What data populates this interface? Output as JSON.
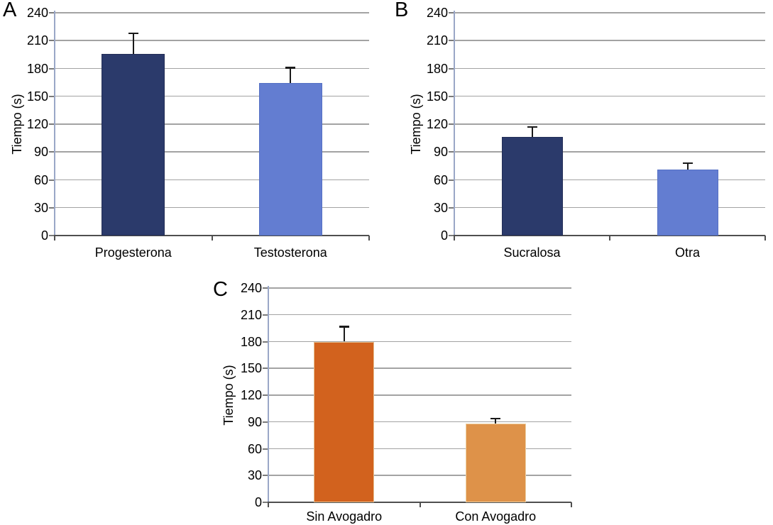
{
  "figure": {
    "background": "#ffffff",
    "description_visible_text_only": true
  },
  "colors": {
    "background": "#ffffff",
    "gridline": "#a3a3a3",
    "baseline": "#4f4f4f",
    "y_axis_line": "#9aa7c7",
    "tick_mark": "#7a7a7a",
    "x_tick_mark": "#4f4f4f",
    "error_bar": "#1a1a1a",
    "text": "#000000",
    "navy_bar": "#2b3a6b",
    "light_blue_bar": "#637dd1",
    "dark_orange_bar": "#d2621e",
    "light_orange_bar": "#de9249"
  },
  "chart_data": [
    {
      "type": "bar",
      "panel_label": "A",
      "title": "",
      "xlabel": "",
      "ylabel": "Tiempo (s)",
      "ylim": [
        0,
        240
      ],
      "ytick_step": 30,
      "yticks": [
        0,
        30,
        60,
        90,
        120,
        150,
        180,
        210,
        240
      ],
      "categories": [
        "Progesterona",
        "Testosterona"
      ],
      "values": [
        196,
        164
      ],
      "errors_top": [
        218,
        181
      ],
      "bar_colors": [
        "#2b3a6b",
        "#637dd1"
      ],
      "bar_border_colors": [
        "#232e57",
        "#5570c4"
      ],
      "grid": true,
      "legend_position": "none"
    },
    {
      "type": "bar",
      "panel_label": "B",
      "title": "",
      "xlabel": "",
      "ylabel": "Tiempo (s)",
      "ylim": [
        0,
        240
      ],
      "ytick_step": 30,
      "yticks": [
        0,
        30,
        60,
        90,
        120,
        150,
        180,
        210,
        240
      ],
      "categories": [
        "Sucralosa",
        "Otra"
      ],
      "values": [
        106,
        71
      ],
      "errors_top": [
        117,
        78
      ],
      "bar_colors": [
        "#2b3a6b",
        "#637dd1"
      ],
      "bar_border_colors": [
        "#232e57",
        "#5570c4"
      ],
      "grid": true,
      "legend_position": "none"
    },
    {
      "type": "bar",
      "panel_label": "C",
      "title": "",
      "xlabel": "",
      "ylabel": "Tiempo (s)",
      "ylim": [
        0,
        240
      ],
      "ytick_step": 30,
      "yticks": [
        0,
        30,
        60,
        90,
        120,
        150,
        180,
        210,
        240
      ],
      "categories": [
        "Sin Avogadro",
        "Con Avogadro"
      ],
      "values": [
        180,
        88
      ],
      "errors_top": [
        197,
        94
      ],
      "bar_colors": [
        "#d2621e",
        "#de9249"
      ],
      "bar_border_colors": [
        "#e6c091",
        "#ecd0a4"
      ],
      "grid": true,
      "legend_position": "none"
    }
  ]
}
